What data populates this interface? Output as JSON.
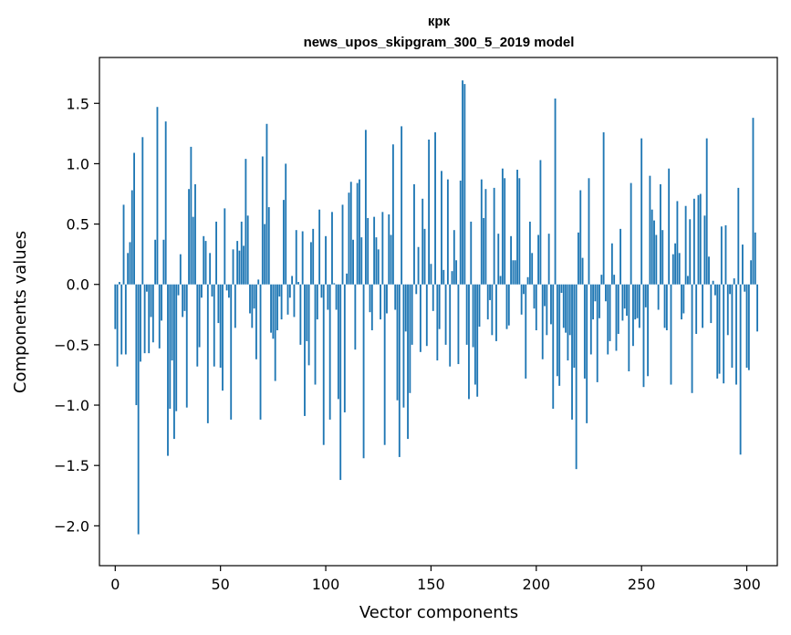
{
  "chart_data": {
    "type": "bar",
    "title": "крк",
    "subtitle": "news_upos_skipgram_300_5_2019 model",
    "xlabel": "Vector components",
    "ylabel": "Components values",
    "xlim": [
      -7.5,
      314.5
    ],
    "ylim": [
      -2.33,
      1.88
    ],
    "xticks": [
      0,
      50,
      100,
      150,
      200,
      250,
      300
    ],
    "yticks": [
      -2.0,
      -1.5,
      -1.0,
      -0.5,
      0.0,
      0.5,
      1.0,
      1.5
    ],
    "ytick_labels": [
      "−2.0",
      "−1.5",
      "−1.0",
      "−0.5",
      "0.0",
      "0.5",
      "1.0",
      "1.5"
    ],
    "bar_color": "#1f77b4",
    "grid": false,
    "legend": "none",
    "values": [
      -0.37,
      -0.68,
      0.02,
      -0.58,
      0.66,
      -0.58,
      0.26,
      0.35,
      0.78,
      1.09,
      -1.0,
      -2.07,
      -0.64,
      1.22,
      -0.57,
      -0.06,
      -0.57,
      -0.27,
      -0.48,
      0.37,
      1.47,
      -0.53,
      -0.3,
      0.37,
      1.35,
      -1.42,
      -1.03,
      -0.63,
      -1.28,
      -1.05,
      -0.09,
      0.25,
      -0.27,
      -0.22,
      -1.02,
      0.79,
      1.14,
      0.56,
      0.83,
      -0.68,
      -0.52,
      -0.11,
      0.4,
      0.36,
      -1.15,
      0.26,
      -0.1,
      -0.68,
      0.52,
      -0.32,
      -0.69,
      -0.88,
      0.63,
      -0.05,
      -0.11,
      -1.12,
      0.29,
      -0.36,
      0.36,
      0.28,
      0.52,
      0.32,
      1.04,
      0.57,
      -0.24,
      -0.36,
      -0.2,
      -0.62,
      0.04,
      -1.12,
      1.06,
      0.5,
      1.33,
      0.64,
      -0.4,
      -0.45,
      -0.8,
      -0.38,
      -0.1,
      -0.29,
      0.7,
      1.0,
      -0.25,
      -0.11,
      0.07,
      -0.27,
      0.45,
      0.02,
      -0.5,
      0.44,
      -1.09,
      -0.47,
      -0.67,
      0.35,
      0.46,
      -0.83,
      -0.29,
      0.62,
      -0.11,
      -1.33,
      0.4,
      -0.21,
      -1.12,
      0.6,
      0.01,
      -0.21,
      -0.95,
      -1.62,
      0.66,
      -1.06,
      0.09,
      0.76,
      0.85,
      0.37,
      -0.54,
      0.84,
      0.87,
      0.39,
      -1.44,
      1.28,
      0.55,
      -0.23,
      -0.38,
      0.56,
      0.39,
      0.29,
      -0.29,
      0.6,
      -1.33,
      -0.24,
      0.58,
      0.41,
      1.16,
      -0.21,
      -0.96,
      -1.43,
      1.31,
      -1.02,
      -0.39,
      -1.28,
      -0.9,
      -0.5,
      0.83,
      -0.08,
      0.31,
      -0.56,
      0.71,
      0.46,
      -0.51,
      1.2,
      0.17,
      -0.22,
      1.26,
      -0.63,
      -0.37,
      0.94,
      0.12,
      -0.5,
      0.87,
      -0.68,
      0.11,
      0.45,
      0.2,
      -0.66,
      0.86,
      1.69,
      1.66,
      -0.5,
      -0.95,
      0.52,
      -0.52,
      -0.83,
      -0.93,
      -0.35,
      0.87,
      0.55,
      0.79,
      -0.29,
      -0.13,
      -0.42,
      0.8,
      -0.47,
      0.42,
      0.07,
      0.96,
      0.88,
      -0.37,
      -0.34,
      0.4,
      0.2,
      0.2,
      0.95,
      0.88,
      -0.25,
      -0.08,
      -0.78,
      0.06,
      0.52,
      0.26,
      -0.2,
      -0.38,
      0.41,
      1.03,
      -0.62,
      -0.18,
      -0.42,
      0.42,
      -0.33,
      -1.03,
      1.54,
      -0.76,
      -0.84,
      -0.07,
      -0.36,
      -0.4,
      -0.63,
      -0.42,
      -1.12,
      -0.69,
      -1.53,
      0.43,
      0.78,
      0.22,
      -0.78,
      -1.15,
      0.88,
      -0.58,
      -0.29,
      -0.14,
      -0.81,
      -0.28,
      0.08,
      1.26,
      -0.14,
      -0.58,
      -0.47,
      0.34,
      0.08,
      -0.55,
      -0.41,
      0.46,
      -0.3,
      -0.2,
      -0.26,
      -0.72,
      0.84,
      -0.51,
      -0.29,
      -0.28,
      -0.36,
      1.21,
      -0.85,
      -0.19,
      -0.76,
      0.9,
      0.62,
      0.53,
      0.41,
      -0.21,
      0.83,
      0.45,
      -0.36,
      -0.38,
      0.96,
      -0.83,
      0.25,
      0.34,
      0.69,
      0.26,
      -0.29,
      -0.24,
      0.65,
      0.07,
      0.54,
      -0.9,
      0.71,
      -0.41,
      0.74,
      0.75,
      -0.36,
      0.57,
      1.21,
      0.23,
      -0.32,
      0.03,
      -0.09,
      -0.78,
      -0.74,
      0.48,
      -0.82,
      0.49,
      -0.42,
      -0.08,
      -0.69,
      0.05,
      -0.83,
      0.8,
      -1.41,
      0.33,
      -0.06,
      -0.69,
      -0.71,
      0.2,
      1.38,
      0.43,
      -0.39
    ]
  }
}
